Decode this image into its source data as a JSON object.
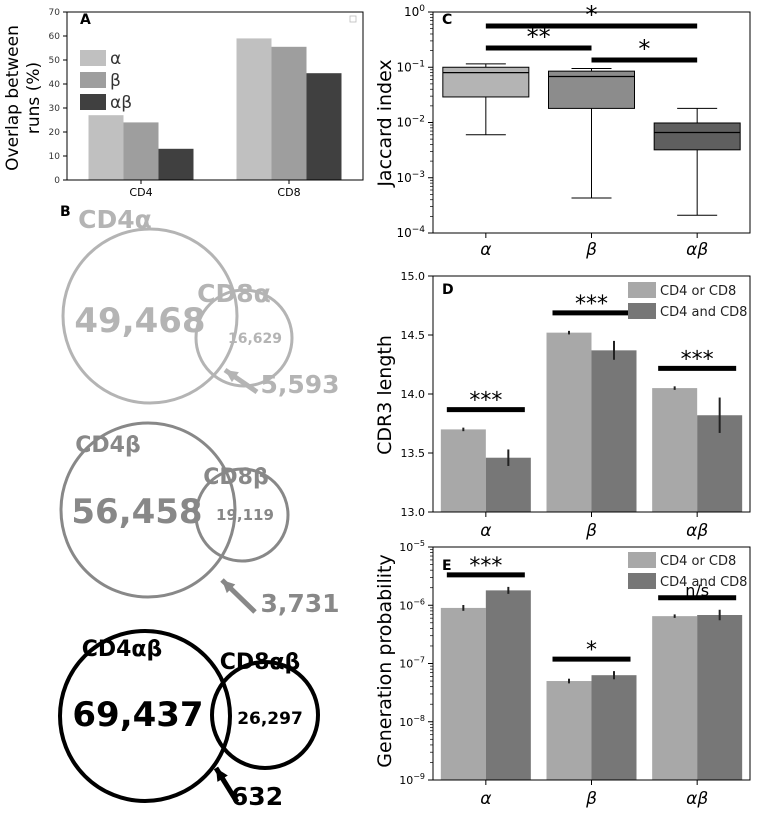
{
  "chart_data": [
    {
      "panel": "A",
      "type": "bar",
      "ylabel_line1": "Overlap between",
      "ylabel_line2": "runs (%)",
      "categories": [
        "CD4",
        "CD8"
      ],
      "series": [
        {
          "name": "α",
          "color": "#c0c0c0",
          "values": [
            27,
            59
          ]
        },
        {
          "name": "β",
          "color": "#9e9e9e",
          "values": [
            24,
            55.5
          ]
        },
        {
          "name": "αβ",
          "color": "#404040",
          "values": [
            13,
            44.5
          ]
        }
      ],
      "ylim": [
        0,
        70
      ],
      "yticks": [
        "0",
        "10",
        "20",
        "30",
        "40",
        "50",
        "60",
        "70"
      ],
      "legend": "upper-left"
    },
    {
      "panel": "B",
      "type": "venn",
      "groups": [
        {
          "left_label": "CD4α",
          "right_label": "CD8α",
          "left_count": "49,468",
          "right_count": "16,629",
          "overlap": "5,593",
          "color": "#b4b4b4"
        },
        {
          "left_label": "CD4β",
          "right_label": "CD8β",
          "left_count": "56,458",
          "right_count": "19,119",
          "overlap": "3,731",
          "color": "#888888"
        },
        {
          "left_label": "CD4αβ",
          "right_label": "CD8αβ",
          "left_count": "69,437",
          "right_count": "26,297",
          "overlap": "632",
          "color": "#000000"
        }
      ]
    },
    {
      "panel": "C",
      "type": "boxplot",
      "ylabel": "Jaccard index",
      "yscale": "log",
      "ylim_exp": [
        -4,
        0
      ],
      "ytick_exps": [
        "−4",
        "−3",
        "−2",
        "−1",
        "0"
      ],
      "ytick_base": "10",
      "categories": [
        "α",
        "β",
        "αβ"
      ],
      "boxes": [
        {
          "whisker_low": 0.006,
          "q1": 0.029,
          "median": 0.08,
          "q3": 0.1,
          "whisker_high": 0.115,
          "color": "#b4b4b4"
        },
        {
          "whisker_low": 0.00043,
          "q1": 0.018,
          "median": 0.068,
          "q3": 0.085,
          "whisker_high": 0.095,
          "color": "#8c8c8c"
        },
        {
          "whisker_low": 0.00021,
          "q1": 0.0032,
          "median": 0.0066,
          "q3": 0.0098,
          "whisker_high": 0.018,
          "color": "#5f5f5f"
        }
      ],
      "significance": [
        {
          "from": 0,
          "to": 2,
          "label": "*"
        },
        {
          "from": 0,
          "to": 1,
          "label": "**"
        },
        {
          "from": 1,
          "to": 2,
          "label": "*"
        }
      ]
    },
    {
      "panel": "D",
      "type": "bar",
      "ylabel": "CDR3 length",
      "categories": [
        "α",
        "β",
        "αβ"
      ],
      "series": [
        {
          "name": "CD4 or CD8",
          "color": "#a8a8a8",
          "values": [
            13.7,
            14.52,
            14.05
          ],
          "errors": [
            0.015,
            0.015,
            0.015
          ]
        },
        {
          "name": "CD4 and CD8",
          "color": "#777777",
          "values": [
            13.46,
            14.37,
            13.82
          ],
          "errors": [
            0.07,
            0.08,
            0.15
          ]
        }
      ],
      "ylim": [
        13.0,
        15.0
      ],
      "yticks": [
        "13.0",
        "13.5",
        "14.0",
        "14.5",
        "15.0"
      ],
      "significance": [
        "***",
        "***",
        "***"
      ],
      "legend": "top-right"
    },
    {
      "panel": "E",
      "type": "bar",
      "ylabel": "Generation probability",
      "yscale": "log",
      "ylim_exp": [
        -9,
        -5
      ],
      "ytick_exps": [
        "−9",
        "−8",
        "−7",
        "−6",
        "−5"
      ],
      "ytick_base": "10",
      "categories": [
        "α",
        "β",
        "αβ"
      ],
      "series": [
        {
          "name": "CD4 or CD8",
          "color": "#a8a8a8",
          "values": [
            9e-07,
            5e-08,
            6.5e-07
          ],
          "errors": [
            0.05,
            0.04,
            0.03
          ]
        },
        {
          "name": "CD4 and CD8",
          "color": "#777777",
          "values": [
            1.8e-06,
            6.3e-08,
            6.8e-07
          ],
          "errors": [
            0.06,
            0.07,
            0.09
          ]
        }
      ],
      "significance": [
        "***",
        "*",
        "n/s"
      ],
      "legend": "top-right"
    }
  ]
}
